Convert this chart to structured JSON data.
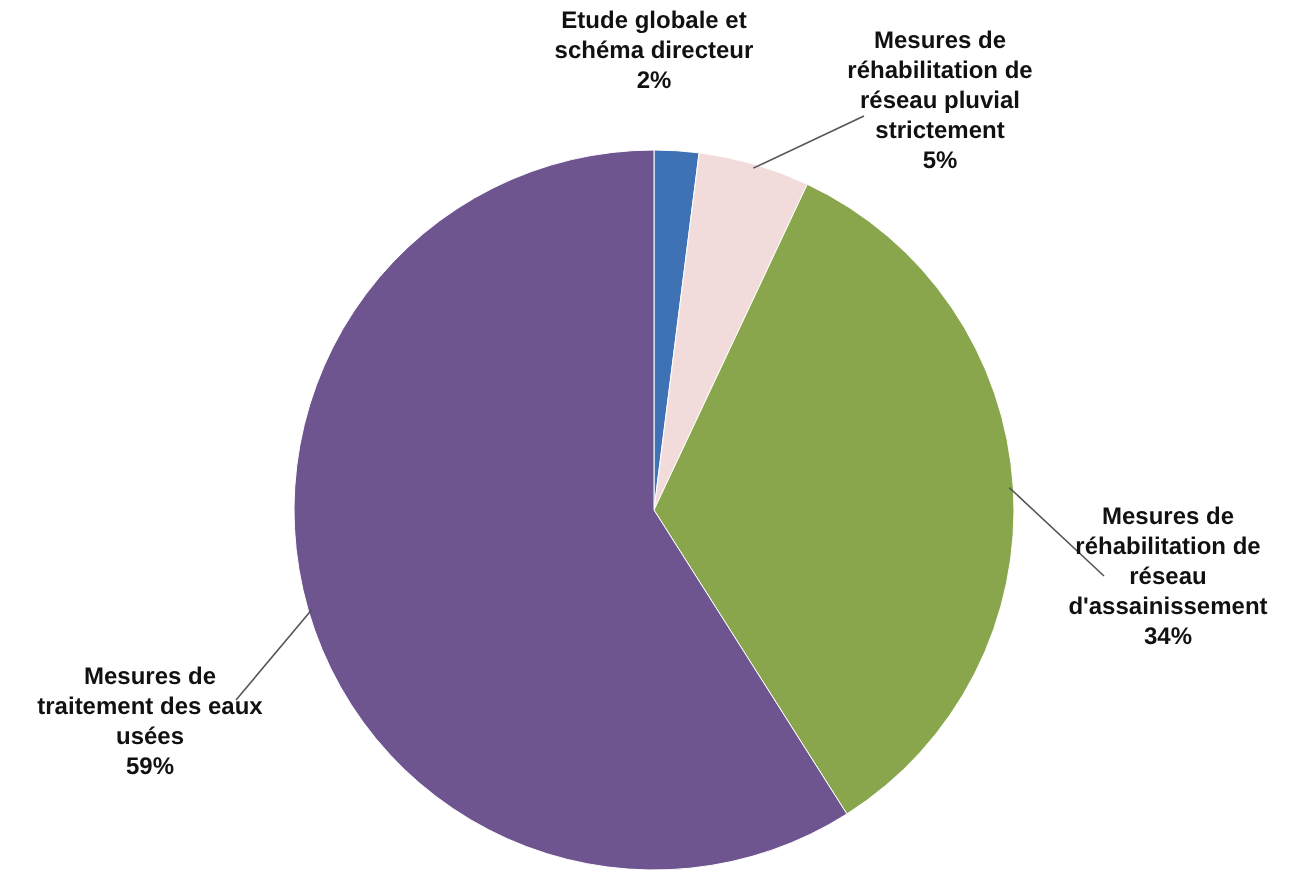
{
  "chart_data": {
    "type": "pie",
    "categories": [
      "Etude globale et schéma directeur",
      "Mesures de réhabilitation de réseau pluvial strictement",
      "Mesures de réhabilitation de réseau d'assainissement",
      "Mesures de traitement des eaux usées"
    ],
    "values": [
      2,
      5,
      34,
      59
    ],
    "colors": [
      "#3f72b5",
      "#f2dcdb",
      "#8aa64c",
      "#6f5590"
    ],
    "value_labels": [
      "2%",
      "5%",
      "34%",
      "59%"
    ]
  }
}
